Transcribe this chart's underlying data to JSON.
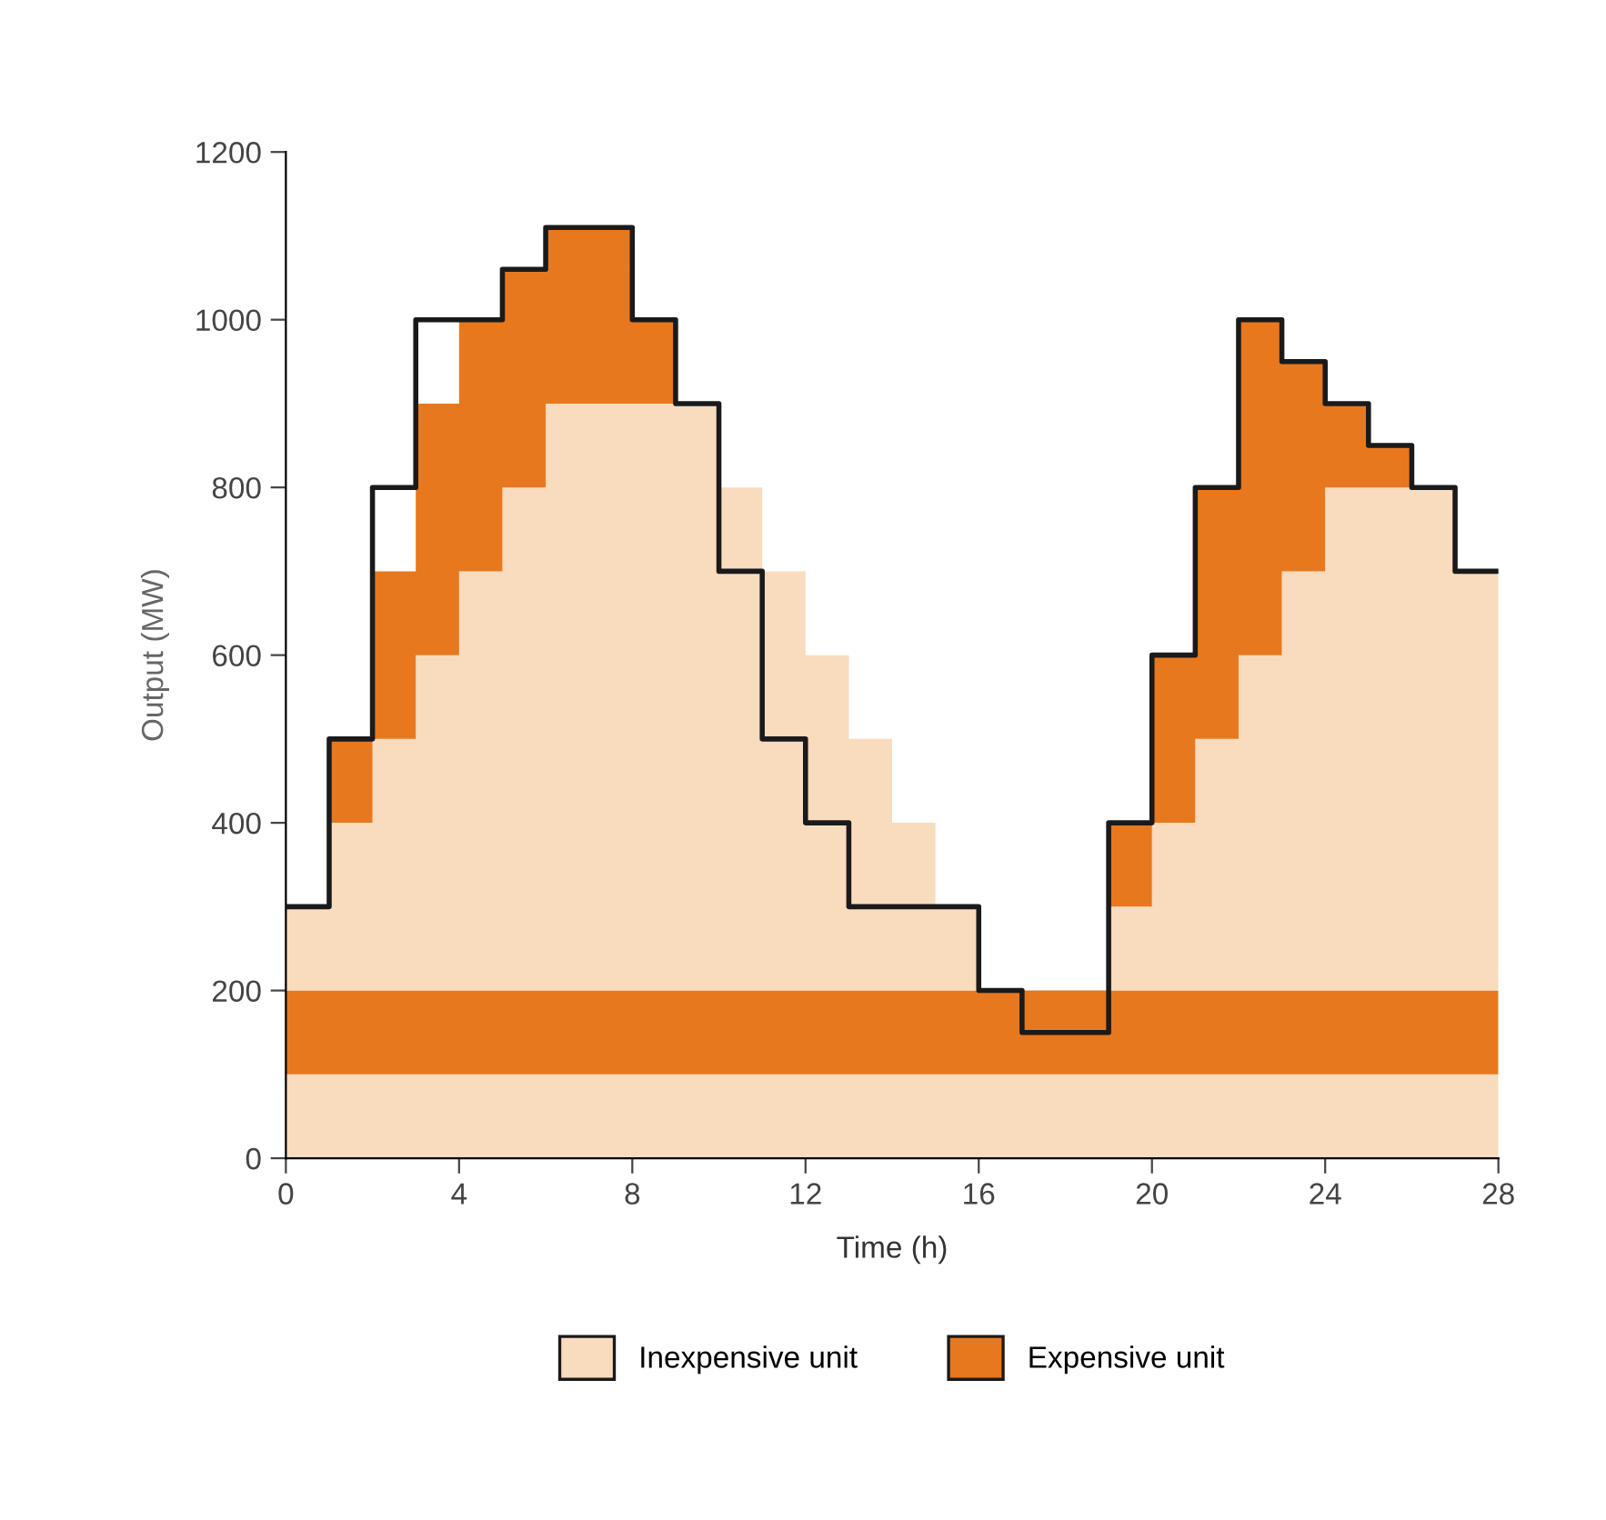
{
  "chart_data": {
    "type": "area",
    "stacked": true,
    "xlabel": "Time (h)",
    "ylabel": "Output (MW)",
    "xlim": [
      0,
      28
    ],
    "ylim": [
      0,
      1200
    ],
    "xticks": [
      0,
      4,
      8,
      12,
      16,
      20,
      24,
      28
    ],
    "yticks": [
      0,
      200,
      400,
      600,
      800,
      1000,
      1200
    ],
    "grid": false,
    "legend": "bottom",
    "x": [
      0,
      1,
      2,
      3,
      4,
      5,
      6,
      7,
      8,
      9,
      10,
      11,
      12,
      13,
      14,
      15,
      16,
      17,
      18,
      19,
      20,
      21,
      22,
      23,
      24,
      25,
      26,
      27,
      28
    ],
    "series": [
      {
        "name": "Inexpensive unit",
        "color": "#f9dbbd",
        "values": [
          100,
          100,
          100,
          100,
          100,
          100,
          100,
          100,
          100,
          100,
          100,
          100,
          100,
          100,
          100,
          100,
          100,
          100,
          100,
          100,
          100,
          100,
          100,
          100,
          100,
          100,
          100,
          100,
          100
        ]
      },
      {
        "name": "Expensive unit",
        "color": "#e8781e",
        "values": [
          100,
          100,
          100,
          100,
          100,
          100,
          100,
          100,
          100,
          100,
          100,
          100,
          100,
          100,
          100,
          100,
          100,
          100,
          100,
          100,
          100,
          100,
          100,
          100,
          100,
          100,
          100,
          100,
          100
        ]
      },
      {
        "color": "#f9dbbd",
        "values": [
          100,
          200,
          300,
          400,
          500,
          600,
          700,
          700,
          700,
          700,
          600,
          500,
          400,
          300,
          200,
          100,
          0,
          0,
          0,
          100,
          200,
          300,
          400,
          500,
          600,
          600,
          600,
          500,
          500
        ]
      },
      {
        "color": "#e8781e",
        "values": [
          0,
          100,
          200,
          300,
          300,
          260,
          210,
          210,
          100,
          0,
          0,
          0,
          0,
          0,
          0,
          0,
          0,
          0,
          0,
          100,
          200,
          300,
          400,
          250,
          100,
          50,
          0,
          0,
          0
        ]
      },
      {
        "type": "step",
        "color": "#1a1a1a",
        "values": [
          300,
          500,
          800,
          1000,
          1000,
          1060,
          1110,
          1110,
          1000,
          900,
          700,
          500,
          400,
          300,
          300,
          300,
          200,
          150,
          150,
          400,
          600,
          800,
          1000,
          950,
          900,
          850,
          800,
          700,
          700
        ]
      }
    ]
  }
}
